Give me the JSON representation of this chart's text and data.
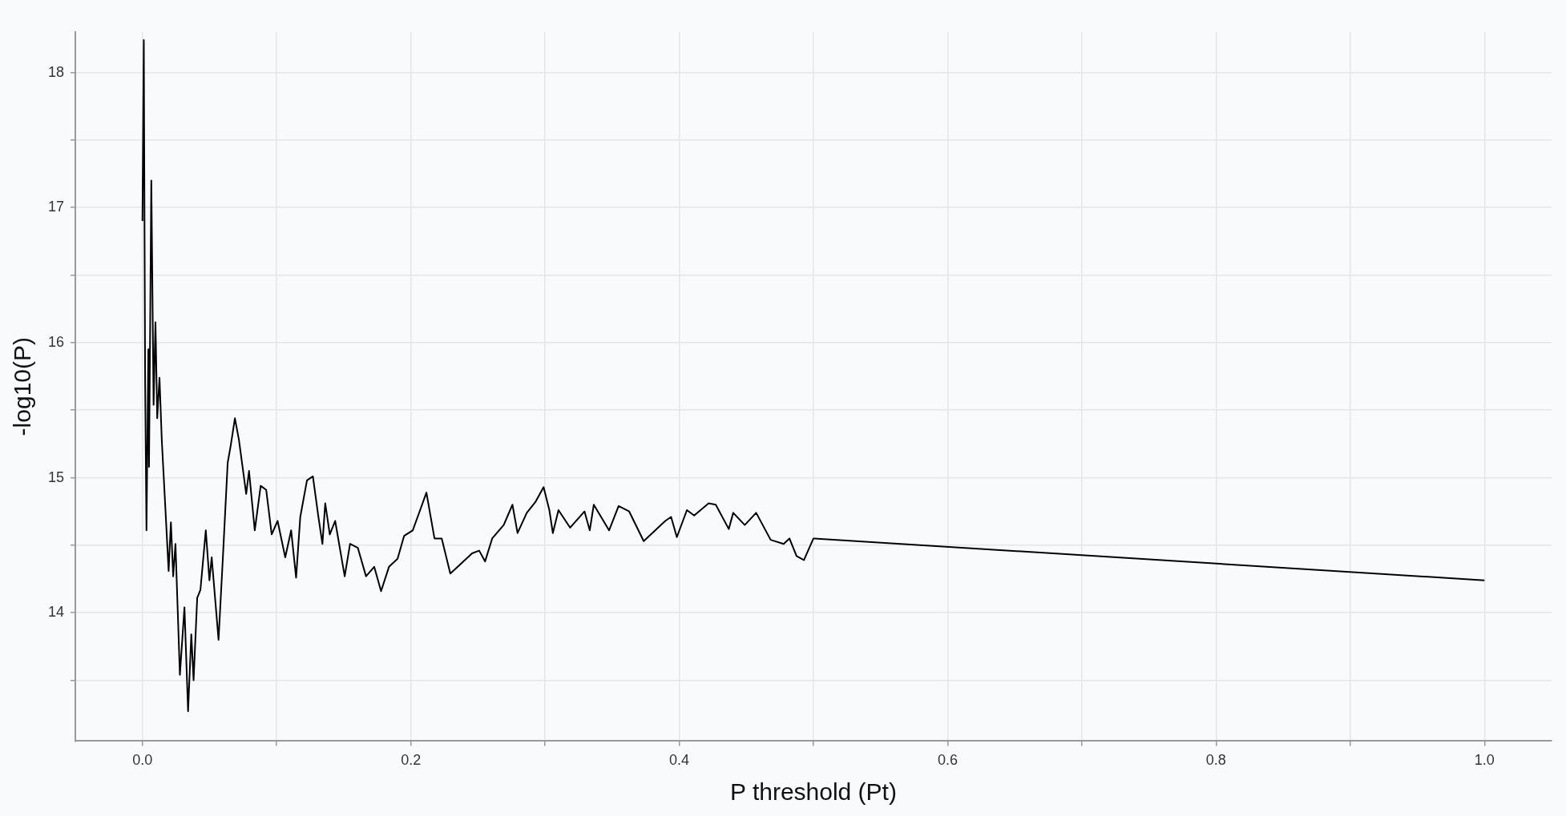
{
  "chart_data": {
    "type": "line",
    "xlabel": "P threshold (Pt)",
    "ylabel": "-log10(P)",
    "xlim": [
      -0.05,
      1.05
    ],
    "ylim": [
      13.05,
      18.3
    ],
    "xticks": [
      {
        "value": 0,
        "label": "0.0"
      },
      {
        "value": 0.1,
        "label": null
      },
      {
        "value": 0.2,
        "label": "0.2"
      },
      {
        "value": 0.3,
        "label": null
      },
      {
        "value": 0.4,
        "label": "0.4"
      },
      {
        "value": 0.5,
        "label": null
      },
      {
        "value": 0.6,
        "label": "0.6"
      },
      {
        "value": 0.7,
        "label": null
      },
      {
        "value": 0.8,
        "label": "0.8"
      },
      {
        "value": 0.9,
        "label": null
      },
      {
        "value": 1,
        "label": "1.0"
      }
    ],
    "yticks": [
      {
        "value": 13.5,
        "label": null
      },
      14,
      {
        "value": 14.5,
        "label": null
      },
      15,
      {
        "value": 15.5,
        "label": null
      },
      16,
      {
        "value": 16.5,
        "label": null
      },
      17,
      {
        "value": 17.5,
        "label": null
      },
      18
    ],
    "grid": true,
    "legend": false,
    "marker": "none",
    "line_style": "solid",
    "x": [
      0,
      0.001,
      0.002,
      0.003,
      0.0044,
      0.0049,
      0.0066,
      0.0083,
      0.0097,
      0.011,
      0.0127,
      0.0144,
      0.0171,
      0.0195,
      0.0212,
      0.0229,
      0.0246,
      0.0279,
      0.0313,
      0.034,
      0.0364,
      0.0381,
      0.0408,
      0.0432,
      0.0472,
      0.0499,
      0.0516,
      0.0567,
      0.0601,
      0.0635,
      0.0658,
      0.0689,
      0.0719,
      0.0746,
      0.0773,
      0.0794,
      0.0837,
      0.0881,
      0.0922,
      0.0963,
      0.1007,
      0.1064,
      0.1108,
      0.1145,
      0.1176,
      0.1226,
      0.127,
      0.1311,
      0.1341,
      0.1362,
      0.1396,
      0.1436,
      0.1507,
      0.1547,
      0.1605,
      0.1666,
      0.1727,
      0.1778,
      0.1837,
      0.1901,
      0.195,
      0.2014,
      0.2069,
      0.2116,
      0.2176,
      0.223,
      0.2294,
      0.237,
      0.2456,
      0.2509,
      0.2553,
      0.2606,
      0.2692,
      0.2757,
      0.2795,
      0.2864,
      0.2928,
      0.2989,
      0.3032,
      0.3058,
      0.31,
      0.3187,
      0.3294,
      0.3333,
      0.3363,
      0.3477,
      0.3548,
      0.3627,
      0.3735,
      0.3821,
      0.3896,
      0.3939,
      0.3982,
      0.4057,
      0.4111,
      0.4219,
      0.4272,
      0.4369,
      0.4402,
      0.4488,
      0.4573,
      0.4681,
      0.4778,
      0.4821,
      0.4874,
      0.4929,
      0.5,
      1
    ],
    "series": [
      {
        "color": "#000000",
        "values": [
          16.9,
          18.24,
          15.71,
          14.61,
          15.95,
          15.08,
          17.2,
          15.54,
          16.15,
          15.44,
          15.74,
          15.28,
          14.77,
          14.31,
          14.67,
          14.27,
          14.51,
          13.54,
          14.04,
          13.27,
          13.84,
          13.5,
          14.11,
          14.17,
          14.61,
          14.24,
          14.41,
          13.8,
          14.44,
          15.11,
          15.24,
          15.44,
          15.28,
          15.08,
          14.88,
          15.05,
          14.61,
          14.94,
          14.91,
          14.58,
          14.68,
          14.41,
          14.61,
          14.26,
          14.71,
          14.98,
          15.01,
          14.71,
          14.51,
          14.81,
          14.58,
          14.68,
          14.27,
          14.51,
          14.48,
          14.27,
          14.34,
          14.16,
          14.34,
          14.4,
          14.57,
          14.61,
          14.76,
          14.89,
          14.55,
          14.55,
          14.29,
          14.36,
          14.44,
          14.46,
          14.38,
          14.55,
          14.65,
          14.8,
          14.59,
          14.74,
          14.82,
          14.93,
          14.76,
          14.59,
          14.76,
          14.63,
          14.75,
          14.61,
          14.8,
          14.61,
          14.79,
          14.75,
          14.53,
          14.61,
          14.68,
          14.71,
          14.56,
          14.76,
          14.72,
          14.81,
          14.8,
          14.62,
          14.74,
          14.65,
          14.74,
          14.54,
          14.51,
          14.55,
          14.42,
          14.39,
          14.55,
          14.24
        ]
      }
    ]
  }
}
